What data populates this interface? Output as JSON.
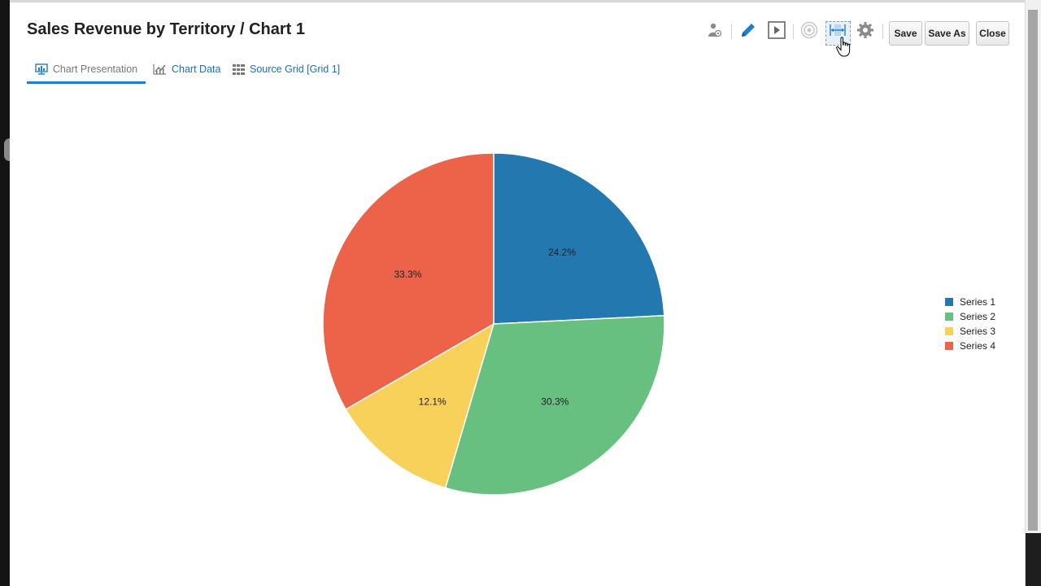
{
  "dialog": {
    "title": "Sales Revenue by Territory / Chart 1"
  },
  "tabs": [
    {
      "label": "Chart Presentation",
      "icon": "chart-presentation-icon",
      "active": true
    },
    {
      "label": "Chart Data",
      "icon": "line-chart-icon",
      "active": false
    },
    {
      "label": "Source Grid [Grid 1]",
      "icon": "grid-icon",
      "active": false
    }
  ],
  "toolbar": {
    "icons": [
      "user-settings-icon",
      "edit-pencil-icon",
      "play-icon",
      "target-icon",
      "fit-width-icon",
      "gear-icon"
    ],
    "save_label": "Save",
    "save_as_label": "Save As",
    "close_label": "Close",
    "accent_color": "#1f7ec9"
  },
  "chart_data": {
    "type": "pie",
    "categories": [
      "Series 1",
      "Series 2",
      "Series 3",
      "Series 4"
    ],
    "values": [
      24.2,
      30.3,
      12.1,
      33.3
    ],
    "labels": [
      "24.2%",
      "30.3%",
      "12.1%",
      "33.3%"
    ],
    "colors": [
      "#2478b0",
      "#67bf80",
      "#f8d15a",
      "#ec6349"
    ],
    "legend": "right",
    "start": "top, clockwise"
  }
}
